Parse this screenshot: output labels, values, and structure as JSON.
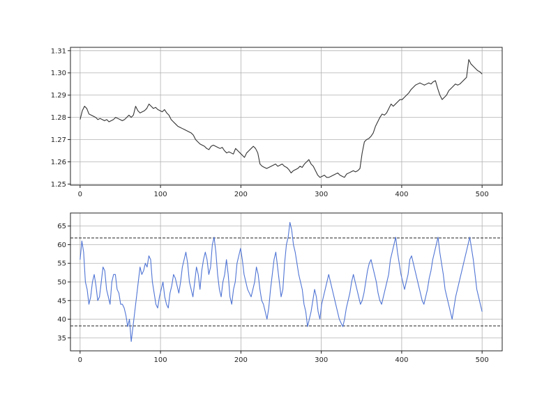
{
  "chart_data": [
    {
      "type": "line",
      "title": "",
      "xlabel": "",
      "ylabel": "",
      "xlim": [
        -12,
        525
      ],
      "ylim": [
        1.2495,
        1.3115
      ],
      "xticks": [
        0,
        100,
        200,
        300,
        400,
        500
      ],
      "yticks": [
        1.25,
        1.26,
        1.27,
        1.28,
        1.29,
        1.3,
        1.31
      ],
      "ytick_decimals": 2,
      "grid": true,
      "color": "#333333",
      "series": [
        {
          "values": [
            1.279,
            1.283,
            1.285,
            1.284,
            1.2815,
            1.281,
            1.2805,
            1.28,
            1.279,
            1.2795,
            1.279,
            1.2785,
            1.279,
            1.278,
            1.2785,
            1.279,
            1.28,
            1.2795,
            1.279,
            1.2785,
            1.279,
            1.28,
            1.281,
            1.28,
            1.281,
            1.285,
            1.283,
            1.282,
            1.2825,
            1.283,
            1.284,
            1.286,
            1.285,
            1.284,
            1.2845,
            1.2835,
            1.283,
            1.2825,
            1.2835,
            1.282,
            1.281,
            1.279,
            1.278,
            1.277,
            1.276,
            1.2755,
            1.275,
            1.2745,
            1.274,
            1.2735,
            1.273,
            1.272,
            1.27,
            1.269,
            1.268,
            1.2675,
            1.267,
            1.266,
            1.2655,
            1.267,
            1.2675,
            1.267,
            1.2665,
            1.266,
            1.2665,
            1.265,
            1.264,
            1.2645,
            1.264,
            1.2635,
            1.266,
            1.265,
            1.264,
            1.263,
            1.262,
            1.264,
            1.265,
            1.266,
            1.267,
            1.266,
            1.264,
            1.259,
            1.258,
            1.2575,
            1.257,
            1.2575,
            1.258,
            1.2585,
            1.259,
            1.258,
            1.2585,
            1.259,
            1.258,
            1.2575,
            1.2565,
            1.255,
            1.256,
            1.2565,
            1.257,
            1.258,
            1.2575,
            1.259,
            1.26,
            1.261,
            1.259,
            1.258,
            1.256,
            1.254,
            1.253,
            1.2535,
            1.254,
            1.253,
            1.253,
            1.2535,
            1.254,
            1.2545,
            1.255,
            1.254,
            1.2535,
            1.253,
            1.2545,
            1.255,
            1.2555,
            1.256,
            1.2555,
            1.256,
            1.257,
            1.264,
            1.269,
            1.27,
            1.2705,
            1.2715,
            1.273,
            1.276,
            1.278,
            1.28,
            1.2815,
            1.281,
            1.282,
            1.284,
            1.286,
            1.285,
            1.286,
            1.287,
            1.288,
            1.288,
            1.289,
            1.29,
            1.291,
            1.2925,
            1.2935,
            1.2945,
            1.295,
            1.2955,
            1.295,
            1.2945,
            1.295,
            1.2955,
            1.295,
            1.296,
            1.2965,
            1.293,
            1.29,
            1.288,
            1.289,
            1.29,
            1.292,
            1.293,
            1.294,
            1.295,
            1.2945,
            1.295,
            1.296,
            1.297,
            1.298,
            1.306,
            1.304,
            1.303,
            1.302,
            1.301,
            1.3005,
            1.2995
          ]
        }
      ]
    },
    {
      "type": "line",
      "title": "",
      "xlabel": "",
      "ylabel": "",
      "xlim": [
        -12,
        525
      ],
      "ylim": [
        31.5,
        68.5
      ],
      "xticks": [
        0,
        100,
        200,
        300,
        400,
        500
      ],
      "yticks": [
        35,
        40,
        45,
        50,
        55,
        60,
        65
      ],
      "ytick_decimals": 0,
      "grid": true,
      "color": "#4f74d4",
      "reference_lines": [
        61.8,
        38.2
      ],
      "series": [
        {
          "values": [
            56,
            61,
            58,
            50,
            48,
            44,
            46,
            50,
            52,
            49,
            45,
            46,
            50,
            54,
            53,
            48,
            46,
            44,
            50,
            52,
            52,
            48,
            47,
            44,
            44,
            43,
            41,
            38,
            40,
            34,
            38,
            42,
            46,
            50,
            54,
            52,
            53,
            55,
            54,
            57,
            56,
            50,
            47,
            44,
            43,
            46,
            48,
            50,
            46,
            44,
            43,
            47,
            49,
            52,
            51,
            49,
            47,
            50,
            54,
            56,
            58,
            55,
            50,
            48,
            46,
            50,
            54,
            52,
            48,
            53,
            56,
            58,
            56,
            52,
            54,
            60,
            62,
            58,
            52,
            48,
            46,
            50,
            52,
            56,
            52,
            46,
            44,
            48,
            50,
            55,
            57,
            59,
            56,
            52,
            50,
            48,
            47,
            46,
            48,
            50,
            54,
            52,
            48,
            45,
            44,
            42,
            40,
            43,
            48,
            52,
            56,
            58,
            54,
            50,
            46,
            48,
            55,
            60,
            62,
            66,
            64,
            60,
            58,
            55,
            52,
            50,
            48,
            44,
            42,
            38,
            40,
            42,
            45,
            48,
            46,
            42,
            40,
            44,
            46,
            48,
            50,
            52,
            50,
            48,
            46,
            44,
            42,
            40,
            39,
            38,
            40,
            43,
            45,
            47,
            50,
            52,
            50,
            48,
            46,
            44,
            45,
            47,
            50,
            53,
            55,
            56,
            54,
            52,
            50,
            47,
            45,
            44,
            46,
            48,
            50,
            52,
            56,
            58,
            60,
            62,
            58,
            55,
            52,
            50,
            48,
            50,
            52,
            56,
            57,
            55,
            53,
            51,
            49,
            47,
            45,
            44,
            46,
            48,
            51,
            53,
            56,
            58,
            60,
            62,
            58,
            55,
            52,
            48,
            46,
            44,
            42,
            40,
            43,
            46,
            48,
            50,
            52,
            54,
            56,
            58,
            60,
            62,
            59,
            56,
            52,
            48,
            46,
            44,
            42
          ]
        }
      ]
    }
  ]
}
